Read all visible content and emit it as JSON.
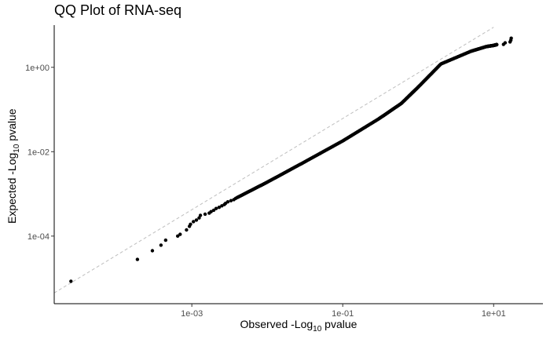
{
  "chart_data": {
    "type": "scatter",
    "title": "QQ Plot of RNA-seq",
    "xlabel": {
      "prefix": "Observed -Log",
      "sub": "10",
      "suffix": " pvalue"
    },
    "ylabel": {
      "prefix": "Expected -Log",
      "sub": "10",
      "suffix": " pvalue"
    },
    "x_scale": "log10",
    "y_scale": "log10",
    "xlim": [
      1.5e-05,
      45
    ],
    "ylim": [
      2.5e-06,
      10
    ],
    "x_ticks": [
      {
        "value": 0.001,
        "label": "1e-03"
      },
      {
        "value": 0.1,
        "label": "1e-01"
      },
      {
        "value": 10,
        "label": "1e+01"
      }
    ],
    "y_ticks": [
      {
        "value": 0.0001,
        "label": "1e-04"
      },
      {
        "value": 0.01,
        "label": "1e-02"
      },
      {
        "value": 1,
        "label": "1e+00"
      }
    ],
    "reference_line": {
      "style": "dashed",
      "color": "#bfbfbf",
      "x": [
        1.5e-05,
        10
      ],
      "y": [
        4.5e-06,
        8.9
      ]
    },
    "points_sparse": [
      [
        2.5e-05,
        8.5e-06
      ],
      [
        0.00019,
        2.8e-05
      ],
      [
        0.0003,
        4.5e-05
      ],
      [
        0.00039,
        6.1e-05
      ],
      [
        0.00045,
        8e-05
      ],
      [
        0.00065,
        0.0001
      ],
      [
        0.0007,
        0.00011
      ],
      [
        0.00085,
        0.00014
      ],
      [
        0.00093,
        0.00017
      ],
      [
        0.00096,
        0.00019
      ],
      [
        0.00105,
        0.00022
      ],
      [
        0.00115,
        0.00024
      ],
      [
        0.00125,
        0.00027
      ],
      [
        0.0013,
        0.00031
      ],
      [
        0.0015,
        0.00033
      ],
      [
        0.0017,
        0.00035
      ],
      [
        0.0018,
        0.00038
      ],
      [
        0.00195,
        0.00041
      ],
      [
        0.0021,
        0.00045
      ],
      [
        0.0023,
        0.00048
      ],
      [
        0.0025,
        0.00052
      ],
      [
        0.0027,
        0.00056
      ],
      [
        0.0028,
        0.0006
      ],
      [
        0.003,
        0.00065
      ],
      [
        0.0033,
        0.00069
      ],
      [
        0.0036,
        0.00073
      ],
      [
        0.0038,
        0.00078
      ]
    ],
    "curve_knots": [
      [
        0.004,
        0.00082
      ],
      [
        0.01,
        0.0019
      ],
      [
        0.03,
        0.0055
      ],
      [
        0.1,
        0.018
      ],
      [
        0.3,
        0.06
      ],
      [
        0.6,
        0.14
      ],
      [
        1,
        0.34
      ],
      [
        2,
        1.2
      ],
      [
        5,
        2.4
      ],
      [
        8,
        3.1
      ],
      [
        10,
        3.3
      ],
      [
        11,
        3.45
      ]
    ],
    "points_tail": [
      [
        13.5,
        3.5
      ],
      [
        14.2,
        3.8
      ],
      [
        16.5,
        4.0
      ],
      [
        16.9,
        4.4
      ],
      [
        17.1,
        4.9
      ]
    ],
    "point_color": "#000000",
    "grid": false,
    "legend": "none"
  }
}
